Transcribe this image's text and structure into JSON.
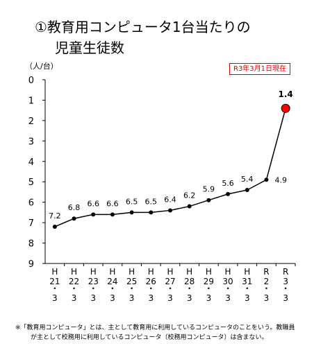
{
  "title": {
    "line1": "①教育用コンピュータ1台当たりの",
    "line2": "児童生徒数"
  },
  "unit_label": "（人/台）",
  "as_of_badge": "R3年3月1日現在",
  "note": {
    "line1": "※「教育用コンピュータ」とは、主として教育用に利用しているコンピュータのことをいう。教職員",
    "line2": "が主として校務用に利用しているコンピュータ（校務用コンピュータ）は含まない。"
  },
  "colors": {
    "highlight": "#ff0000",
    "series": "#000000",
    "badge": "#e00000"
  },
  "chart_data": {
    "type": "line",
    "categories": [
      "H\n21\n・\n3",
      "H\n22\n・\n3",
      "H\n23\n・\n3",
      "H\n24\n・\n3",
      "H\n25\n・\n3",
      "H\n26\n・\n3",
      "H\n27\n・\n3",
      "H\n28\n・\n3",
      "H\n29\n・\n3",
      "H\n30\n・\n3",
      "H\n31\n・\n3",
      "R\n2\n・\n3",
      "R\n3\n・\n3"
    ],
    "values": [
      7.2,
      6.8,
      6.6,
      6.6,
      6.5,
      6.5,
      6.4,
      6.2,
      5.9,
      5.6,
      5.4,
      4.9,
      1.4
    ],
    "value_labels": [
      "7.2",
      "6.8",
      "6.6",
      "6.6",
      "6.5",
      "6.5",
      "6.4",
      "6.2",
      "5.9",
      "5.6",
      "5.4",
      "4.9",
      "1.4"
    ],
    "ylim": [
      0,
      9
    ],
    "y_inverted": true,
    "yticks": [
      "0",
      "1",
      "2",
      "3",
      "4",
      "5",
      "6",
      "7",
      "8",
      "9"
    ],
    "grid": false,
    "highlight_last": true
  }
}
